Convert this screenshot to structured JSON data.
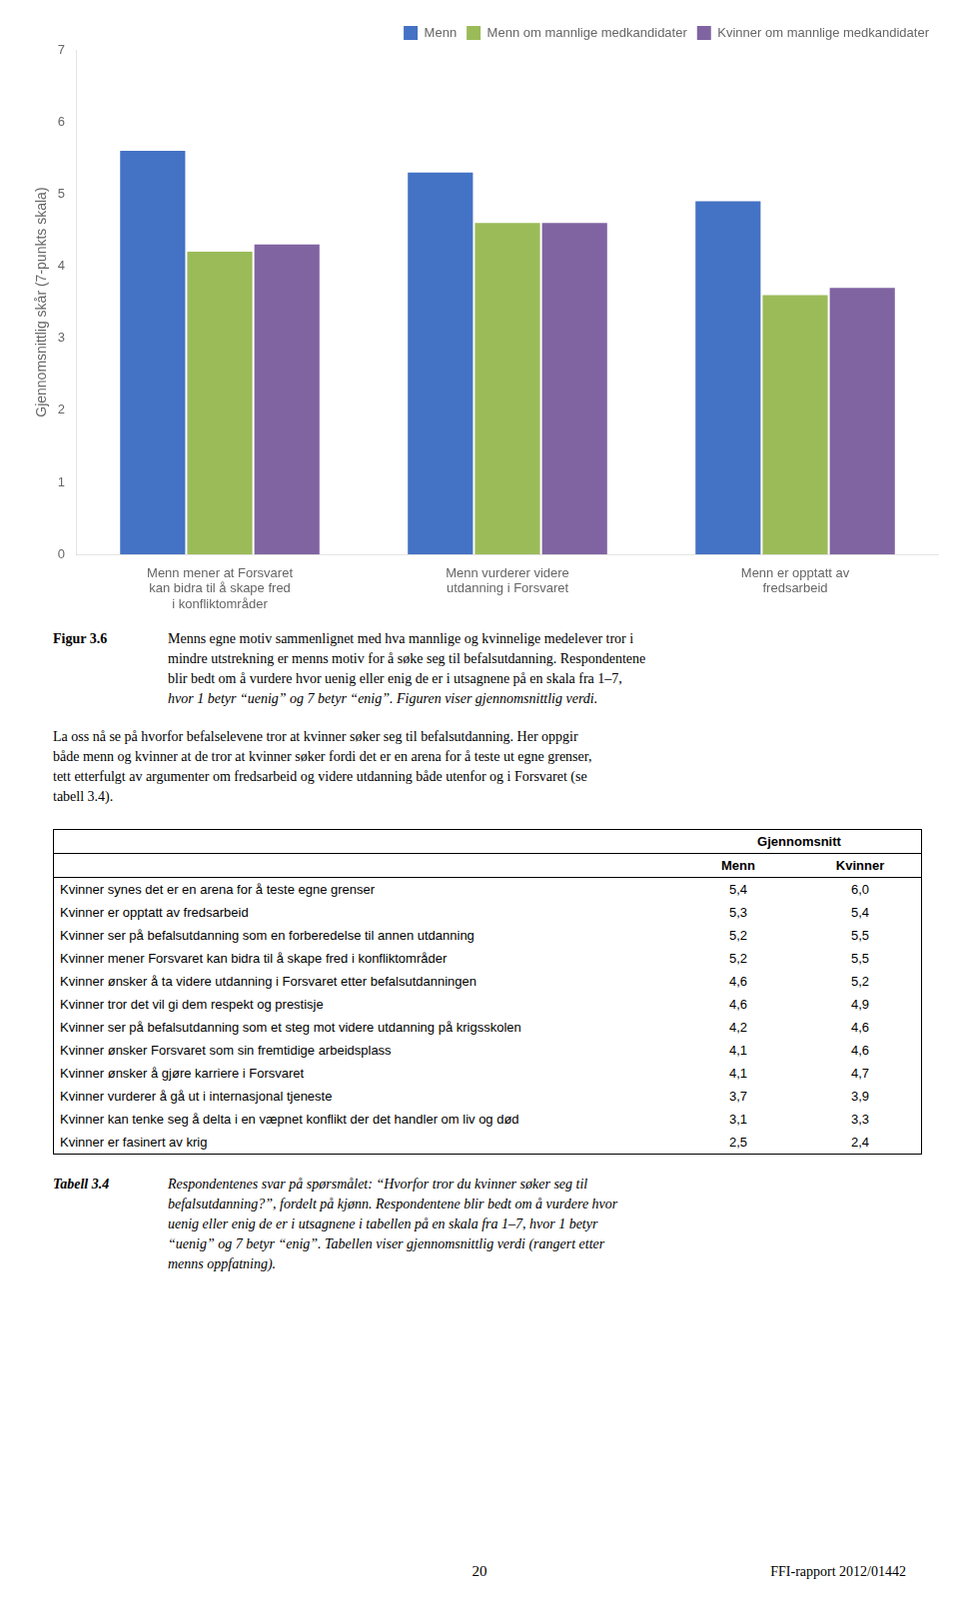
{
  "chart_data": {
    "type": "bar",
    "categories": [
      "Menn mener at Forsvaret\nkan bidra til å skape fred\ni konfliktområder",
      "Menn vurderer videre\nutdanning i Forsvaret",
      "Menn er opptatt av\nfredsarbeid"
    ],
    "series": [
      {
        "name": "Menn",
        "color": "#4472C4",
        "values": [
          5.6,
          5.3,
          4.9
        ]
      },
      {
        "name": "Menn om mannlige medkandidater",
        "color": "#9BBB59",
        "values": [
          4.2,
          4.6,
          3.6
        ]
      },
      {
        "name": "Kvinner om mannlige medkandidater",
        "color": "#8064A2",
        "values": [
          4.3,
          4.6,
          3.7
        ]
      }
    ],
    "ylabel": "Gjennomsnittlig skår (7-punkts skala)",
    "ylim": [
      0,
      7
    ],
    "yticks": [
      0,
      1,
      2,
      3,
      4,
      5,
      6,
      7
    ],
    "grid": false,
    "legend": "upper right"
  },
  "figure_caption": {
    "label": "Figur 3.6",
    "lines": [
      "Menns egne motiv sammenlignet med hva mannlige og kvinnelige medelever tror i",
      "mindre utstrekning er menns motiv for å søke seg til befalsutdanning. Respondentene",
      "blir bedt om å vurdere hvor uenig eller enig de er i utsagnene på en skala fra 1–7,",
      "hvor 1 betyr “uenig” og 7 betyr “enig”. Figuren viser gjennomsnittlig verdi."
    ]
  },
  "paragraph": [
    "La oss nå se på hvorfor befalselevene tror at kvinner søker seg til befalsutdanning. Her oppgir",
    "både menn og kvinner at de tror at kvinner søker fordi det er en arena for å teste ut egne grenser,",
    "tett etterfulgt av argumenter om fredsarbeid og videre utdanning både utenfor og i Forsvaret (se",
    "tabell 3.4)."
  ],
  "table": {
    "header": "Gjennomsnitt",
    "columns": [
      "Menn",
      "Kvinner"
    ],
    "rows": [
      [
        "Kvinner synes det er en arena for å teste egne grenser",
        "5,4",
        "6,0"
      ],
      [
        "Kvinner er opptatt av fredsarbeid",
        "5,3",
        "5,4"
      ],
      [
        "Kvinner ser på befalsutdanning som en forberedelse til annen utdanning",
        "5,2",
        "5,5"
      ],
      [
        "Kvinner mener Forsvaret kan bidra til å skape fred i konfliktområder",
        "5,2",
        "5,5"
      ],
      [
        "Kvinner ønsker å ta videre utdanning i Forsvaret etter befalsutdanningen",
        "4,6",
        "5,2"
      ],
      [
        "Kvinner tror det vil gi dem respekt og prestisje",
        "4,6",
        "4,9"
      ],
      [
        "Kvinner ser på befalsutdanning som et steg mot videre utdanning på krigsskolen",
        "4,2",
        "4,6"
      ],
      [
        "Kvinner ønsker Forsvaret som sin fremtidige arbeidsplass",
        "4,1",
        "4,6"
      ],
      [
        "Kvinner ønsker å gjøre karriere i Forsvaret",
        "4,1",
        "4,7"
      ],
      [
        "Kvinner vurderer å gå ut i internasjonal tjeneste",
        "3,7",
        "3,9"
      ],
      [
        "Kvinner kan tenke seg å delta i en væpnet konflikt der det handler om liv og død",
        "3,1",
        "3,3"
      ],
      [
        "Kvinner er fasinert av krig",
        "2,5",
        "2,4"
      ]
    ]
  },
  "table_caption": {
    "label": "Tabell 3.4",
    "lines": [
      "Respondentenes svar på spørsmålet: “Hvorfor tror du kvinner søker seg til",
      "befalsutdanning?”, fordelt på kjønn. Respondentene blir bedt om å vurdere hvor",
      "uenig eller enig de er i utsagnene i tabellen på en skala fra 1–7, hvor 1 betyr",
      "“uenig” og 7 betyr “enig”. Tabellen viser gjennomsnittlig verdi (rangert etter",
      "menns oppfatning)."
    ]
  },
  "footer": {
    "page": "20",
    "report": "FFI-rapport 2012/01442"
  }
}
